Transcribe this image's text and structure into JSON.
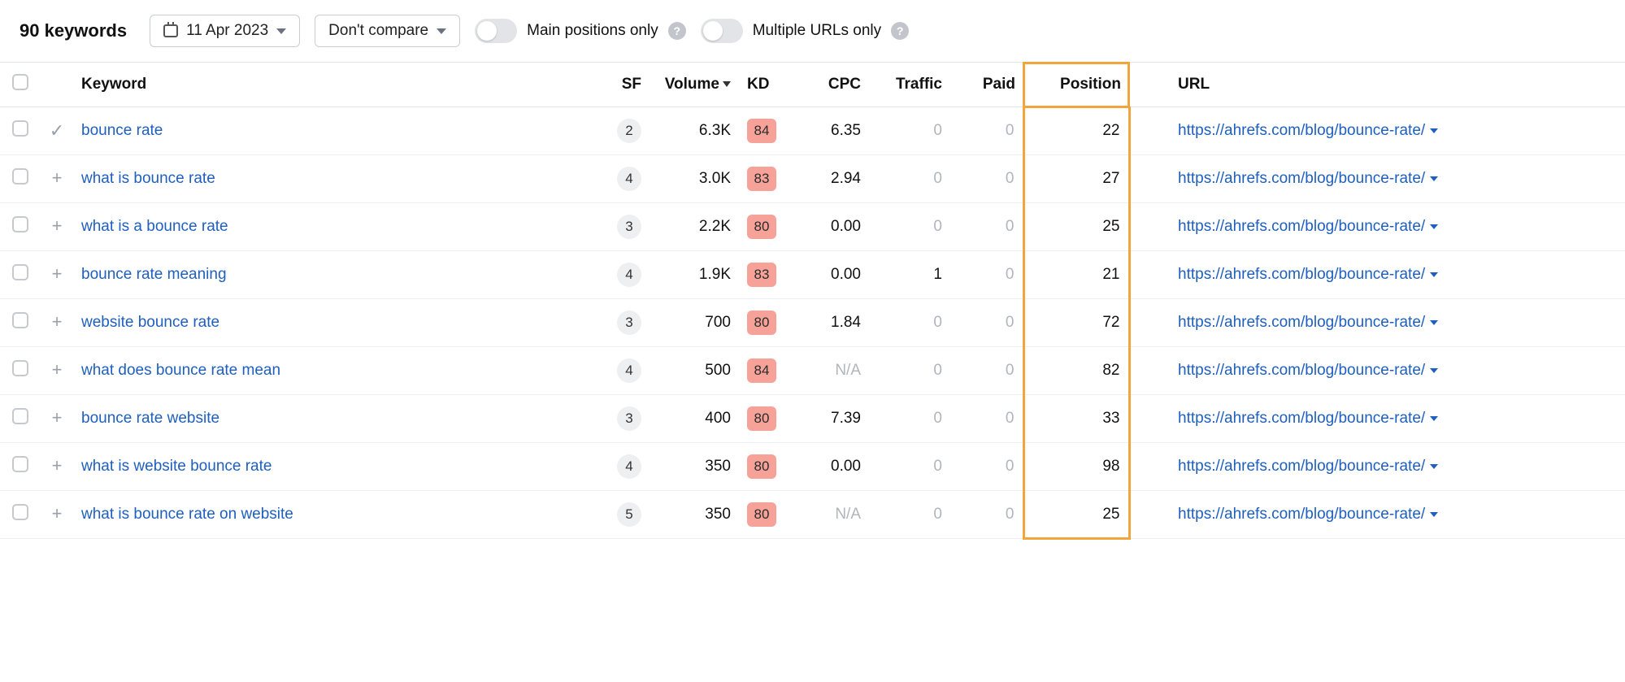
{
  "toolbar": {
    "keyword_count_label": "90 keywords",
    "date_label": "11 Apr 2023",
    "compare_label": "Don't compare",
    "main_positions_label": "Main positions only",
    "multiple_urls_label": "Multiple URLs only"
  },
  "columns": {
    "keyword": "Keyword",
    "sf": "SF",
    "volume": "Volume",
    "kd": "KD",
    "cpc": "CPC",
    "traffic": "Traffic",
    "paid": "Paid",
    "position": "Position",
    "url": "URL"
  },
  "kd_badge_color": "#f6a299",
  "highlight_color": "#f0a63c",
  "link_color": "#1e5fbf",
  "rows": [
    {
      "expand_glyph": "✓",
      "keyword": "bounce rate",
      "sf": "2",
      "volume": "6.3K",
      "kd": "84",
      "cpc": "6.35",
      "traffic": "0",
      "paid": "0",
      "position": "22",
      "url": "https://ahrefs.com/blog/bounce-rate/"
    },
    {
      "expand_glyph": "+",
      "keyword": "what is bounce rate",
      "sf": "4",
      "volume": "3.0K",
      "kd": "83",
      "cpc": "2.94",
      "traffic": "0",
      "paid": "0",
      "position": "27",
      "url": "https://ahrefs.com/blog/bounce-rate/"
    },
    {
      "expand_glyph": "+",
      "keyword": "what is a bounce rate",
      "sf": "3",
      "volume": "2.2K",
      "kd": "80",
      "cpc": "0.00",
      "traffic": "0",
      "paid": "0",
      "position": "25",
      "url": "https://ahrefs.com/blog/bounce-rate/"
    },
    {
      "expand_glyph": "+",
      "keyword": "bounce rate meaning",
      "sf": "4",
      "volume": "1.9K",
      "kd": "83",
      "cpc": "0.00",
      "traffic": "1",
      "paid": "0",
      "position": "21",
      "url": "https://ahrefs.com/blog/bounce-rate/"
    },
    {
      "expand_glyph": "+",
      "keyword": "website bounce rate",
      "sf": "3",
      "volume": "700",
      "kd": "80",
      "cpc": "1.84",
      "traffic": "0",
      "paid": "0",
      "position": "72",
      "url": "https://ahrefs.com/blog/bounce-rate/"
    },
    {
      "expand_glyph": "+",
      "keyword": "what does bounce rate mean",
      "sf": "4",
      "volume": "500",
      "kd": "84",
      "cpc": "N/A",
      "traffic": "0",
      "paid": "0",
      "position": "82",
      "url": "https://ahrefs.com/blog/bounce-rate/"
    },
    {
      "expand_glyph": "+",
      "keyword": "bounce rate website",
      "sf": "3",
      "volume": "400",
      "kd": "80",
      "cpc": "7.39",
      "traffic": "0",
      "paid": "0",
      "position": "33",
      "url": "https://ahrefs.com/blog/bounce-rate/"
    },
    {
      "expand_glyph": "+",
      "keyword": "what is website bounce rate",
      "sf": "4",
      "volume": "350",
      "kd": "80",
      "cpc": "0.00",
      "traffic": "0",
      "paid": "0",
      "position": "98",
      "url": "https://ahrefs.com/blog/bounce-rate/"
    },
    {
      "expand_glyph": "+",
      "keyword": "what is bounce rate on website",
      "sf": "5",
      "volume": "350",
      "kd": "80",
      "cpc": "N/A",
      "traffic": "0",
      "paid": "0",
      "position": "25",
      "url": "https://ahrefs.com/blog/bounce-rate/"
    }
  ]
}
